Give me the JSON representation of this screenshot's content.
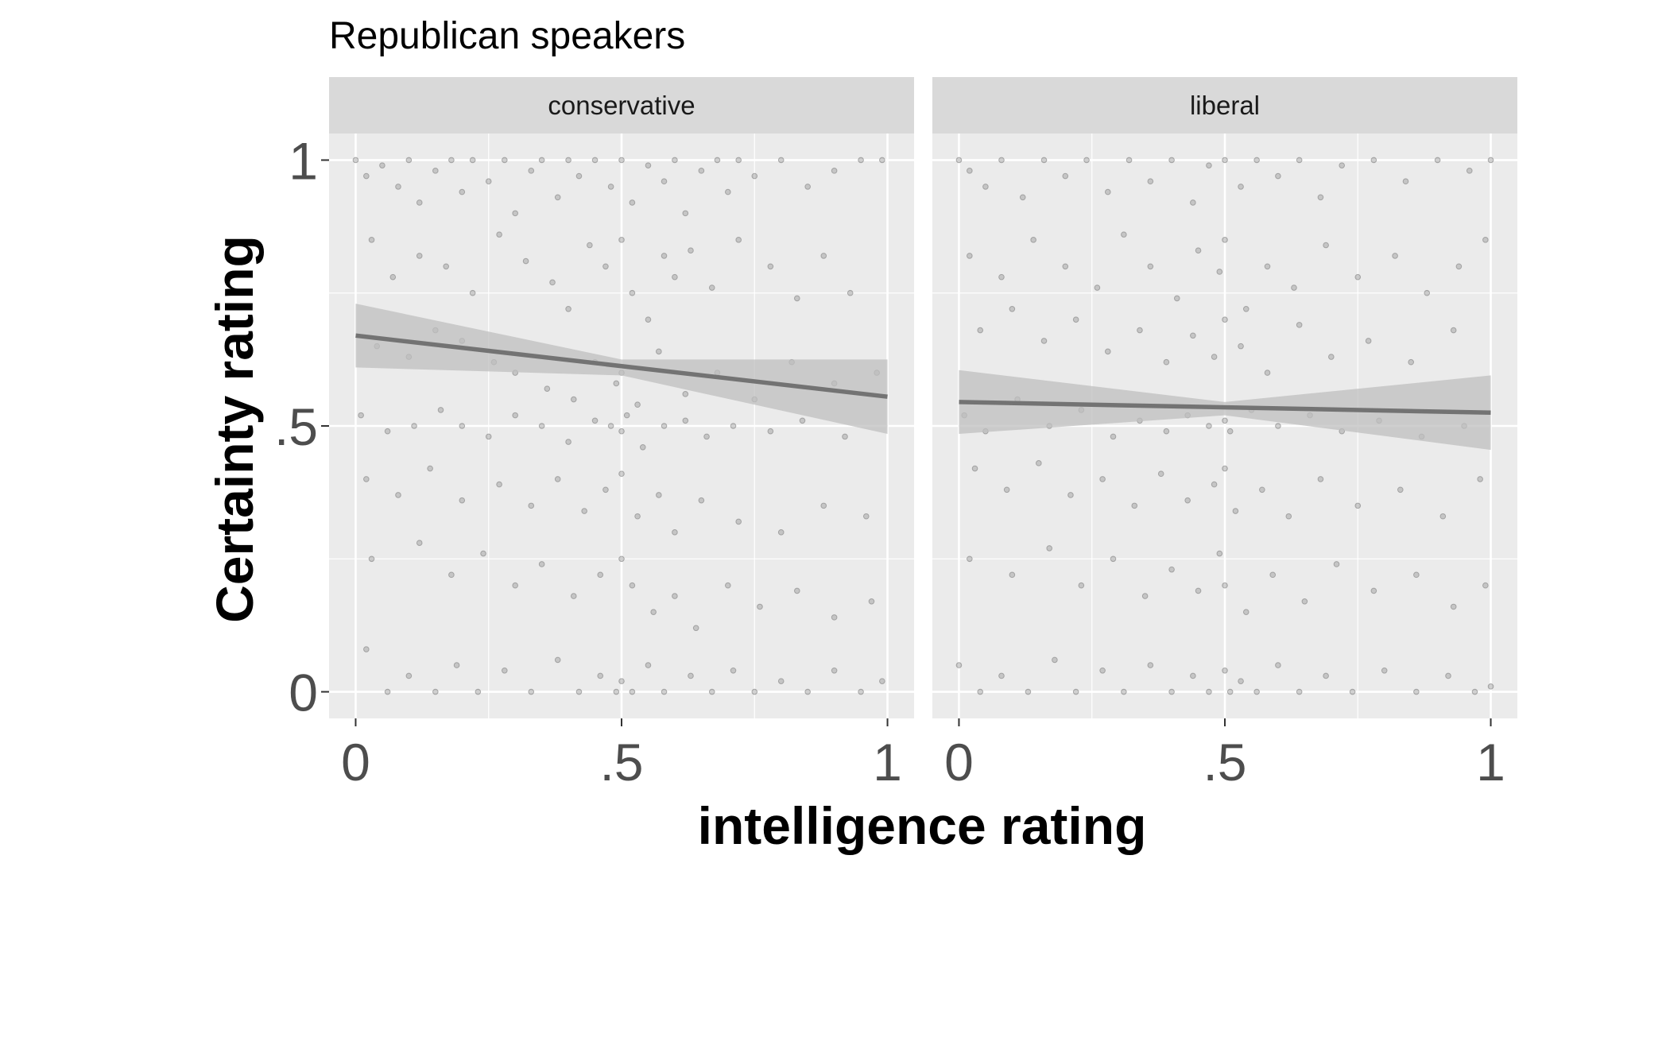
{
  "chart_data": {
    "type": "scatter",
    "title": "Republican speakers",
    "xlabel": "intelligence rating",
    "ylabel": "Certainty rating",
    "xlim": [
      -0.05,
      1.05
    ],
    "ylim": [
      -0.05,
      1.05
    ],
    "x_ticks": [
      0,
      0.5,
      1
    ],
    "x_tick_labels": [
      "0",
      ".5",
      "1"
    ],
    "y_ticks": [
      0,
      0.5,
      1
    ],
    "y_tick_labels": [
      "0",
      ".5",
      "1"
    ],
    "grid": true,
    "legend": "none",
    "colors": {
      "panel_background": "#ebebeb",
      "strip_background": "#d9d9d9",
      "grid": "#ffffff",
      "point": "#7f7f7f",
      "fit_line": "#737373",
      "ribbon": "#bfbfbf"
    },
    "panels": [
      {
        "facet": "conservative",
        "fit": {
          "x": [
            0,
            1
          ],
          "y": [
            0.67,
            0.555
          ]
        },
        "ribbon": {
          "x": [
            0,
            0.5,
            1
          ],
          "lower": [
            0.61,
            0.595,
            0.485
          ],
          "upper": [
            0.73,
            0.625,
            0.625
          ]
        },
        "points": [
          [
            0.0,
            1.0
          ],
          [
            0.02,
            0.97
          ],
          [
            0.05,
            0.99
          ],
          [
            0.08,
            0.95
          ],
          [
            0.1,
            1.0
          ],
          [
            0.12,
            0.92
          ],
          [
            0.15,
            0.98
          ],
          [
            0.18,
            1.0
          ],
          [
            0.2,
            0.94
          ],
          [
            0.22,
            1.0
          ],
          [
            0.25,
            0.96
          ],
          [
            0.28,
            1.0
          ],
          [
            0.3,
            0.9
          ],
          [
            0.33,
            0.98
          ],
          [
            0.35,
            1.0
          ],
          [
            0.38,
            0.93
          ],
          [
            0.4,
            1.0
          ],
          [
            0.42,
            0.97
          ],
          [
            0.45,
            1.0
          ],
          [
            0.48,
            0.95
          ],
          [
            0.5,
            1.0
          ],
          [
            0.52,
            0.92
          ],
          [
            0.55,
            0.99
          ],
          [
            0.58,
            0.96
          ],
          [
            0.6,
            1.0
          ],
          [
            0.62,
            0.9
          ],
          [
            0.65,
            0.98
          ],
          [
            0.68,
            1.0
          ],
          [
            0.7,
            0.94
          ],
          [
            0.72,
            1.0
          ],
          [
            0.75,
            0.97
          ],
          [
            0.8,
            1.0
          ],
          [
            0.85,
            0.95
          ],
          [
            0.9,
            0.98
          ],
          [
            0.95,
            1.0
          ],
          [
            0.99,
            1.0
          ],
          [
            0.03,
            0.85
          ],
          [
            0.07,
            0.78
          ],
          [
            0.12,
            0.82
          ],
          [
            0.17,
            0.8
          ],
          [
            0.22,
            0.75
          ],
          [
            0.27,
            0.86
          ],
          [
            0.32,
            0.81
          ],
          [
            0.37,
            0.77
          ],
          [
            0.4,
            0.72
          ],
          [
            0.44,
            0.84
          ],
          [
            0.47,
            0.8
          ],
          [
            0.5,
            0.85
          ],
          [
            0.52,
            0.75
          ],
          [
            0.55,
            0.7
          ],
          [
            0.58,
            0.82
          ],
          [
            0.6,
            0.78
          ],
          [
            0.63,
            0.83
          ],
          [
            0.67,
            0.76
          ],
          [
            0.72,
            0.85
          ],
          [
            0.78,
            0.8
          ],
          [
            0.83,
            0.74
          ],
          [
            0.88,
            0.82
          ],
          [
            0.93,
            0.75
          ],
          [
            0.04,
            0.65
          ],
          [
            0.1,
            0.63
          ],
          [
            0.15,
            0.68
          ],
          [
            0.2,
            0.66
          ],
          [
            0.26,
            0.62
          ],
          [
            0.3,
            0.6
          ],
          [
            0.36,
            0.57
          ],
          [
            0.41,
            0.55
          ],
          [
            0.45,
            0.62
          ],
          [
            0.49,
            0.58
          ],
          [
            0.5,
            0.6
          ],
          [
            0.53,
            0.54
          ],
          [
            0.57,
            0.64
          ],
          [
            0.62,
            0.56
          ],
          [
            0.68,
            0.6
          ],
          [
            0.75,
            0.55
          ],
          [
            0.82,
            0.62
          ],
          [
            0.9,
            0.58
          ],
          [
            0.98,
            0.6
          ],
          [
            0.01,
            0.52
          ],
          [
            0.06,
            0.49
          ],
          [
            0.11,
            0.5
          ],
          [
            0.16,
            0.53
          ],
          [
            0.2,
            0.5
          ],
          [
            0.25,
            0.48
          ],
          [
            0.3,
            0.52
          ],
          [
            0.35,
            0.5
          ],
          [
            0.4,
            0.47
          ],
          [
            0.45,
            0.51
          ],
          [
            0.48,
            0.5
          ],
          [
            0.5,
            0.49
          ],
          [
            0.51,
            0.52
          ],
          [
            0.54,
            0.46
          ],
          [
            0.58,
            0.5
          ],
          [
            0.62,
            0.51
          ],
          [
            0.66,
            0.48
          ],
          [
            0.71,
            0.5
          ],
          [
            0.78,
            0.49
          ],
          [
            0.84,
            0.51
          ],
          [
            0.92,
            0.48
          ],
          [
            0.02,
            0.4
          ],
          [
            0.08,
            0.37
          ],
          [
            0.14,
            0.42
          ],
          [
            0.2,
            0.36
          ],
          [
            0.27,
            0.39
          ],
          [
            0.33,
            0.35
          ],
          [
            0.38,
            0.4
          ],
          [
            0.43,
            0.34
          ],
          [
            0.47,
            0.38
          ],
          [
            0.5,
            0.41
          ],
          [
            0.53,
            0.33
          ],
          [
            0.57,
            0.37
          ],
          [
            0.6,
            0.3
          ],
          [
            0.65,
            0.36
          ],
          [
            0.72,
            0.32
          ],
          [
            0.8,
            0.3
          ],
          [
            0.88,
            0.35
          ],
          [
            0.96,
            0.33
          ],
          [
            0.03,
            0.25
          ],
          [
            0.12,
            0.28
          ],
          [
            0.18,
            0.22
          ],
          [
            0.24,
            0.26
          ],
          [
            0.3,
            0.2
          ],
          [
            0.35,
            0.24
          ],
          [
            0.41,
            0.18
          ],
          [
            0.46,
            0.22
          ],
          [
            0.5,
            0.25
          ],
          [
            0.52,
            0.2
          ],
          [
            0.56,
            0.15
          ],
          [
            0.6,
            0.18
          ],
          [
            0.64,
            0.12
          ],
          [
            0.7,
            0.2
          ],
          [
            0.76,
            0.16
          ],
          [
            0.83,
            0.19
          ],
          [
            0.9,
            0.14
          ],
          [
            0.97,
            0.17
          ],
          [
            0.02,
            0.08
          ],
          [
            0.06,
            0.0
          ],
          [
            0.1,
            0.03
          ],
          [
            0.15,
            0.0
          ],
          [
            0.19,
            0.05
          ],
          [
            0.23,
            0.0
          ],
          [
            0.28,
            0.04
          ],
          [
            0.33,
            0.0
          ],
          [
            0.38,
            0.06
          ],
          [
            0.42,
            0.0
          ],
          [
            0.46,
            0.03
          ],
          [
            0.49,
            0.0
          ],
          [
            0.5,
            0.02
          ],
          [
            0.52,
            0.0
          ],
          [
            0.55,
            0.05
          ],
          [
            0.58,
            0.0
          ],
          [
            0.63,
            0.03
          ],
          [
            0.67,
            0.0
          ],
          [
            0.71,
            0.04
          ],
          [
            0.75,
            0.0
          ],
          [
            0.8,
            0.02
          ],
          [
            0.85,
            0.0
          ],
          [
            0.9,
            0.04
          ],
          [
            0.95,
            0.0
          ],
          [
            0.99,
            0.02
          ]
        ]
      },
      {
        "facet": "liberal",
        "fit": {
          "x": [
            0,
            1
          ],
          "y": [
            0.545,
            0.525
          ]
        },
        "ribbon": {
          "x": [
            0,
            0.5,
            1
          ],
          "lower": [
            0.485,
            0.52,
            0.455
          ],
          "upper": [
            0.605,
            0.545,
            0.595
          ]
        },
        "points": [
          [
            0.0,
            1.0
          ],
          [
            0.02,
            0.98
          ],
          [
            0.05,
            0.95
          ],
          [
            0.08,
            1.0
          ],
          [
            0.12,
            0.93
          ],
          [
            0.16,
            1.0
          ],
          [
            0.2,
            0.97
          ],
          [
            0.24,
            1.0
          ],
          [
            0.28,
            0.94
          ],
          [
            0.32,
            1.0
          ],
          [
            0.36,
            0.96
          ],
          [
            0.4,
            1.0
          ],
          [
            0.44,
            0.92
          ],
          [
            0.47,
            0.99
          ],
          [
            0.5,
            1.0
          ],
          [
            0.53,
            0.95
          ],
          [
            0.56,
            1.0
          ],
          [
            0.6,
            0.97
          ],
          [
            0.64,
            1.0
          ],
          [
            0.68,
            0.93
          ],
          [
            0.72,
            0.99
          ],
          [
            0.78,
            1.0
          ],
          [
            0.84,
            0.96
          ],
          [
            0.9,
            1.0
          ],
          [
            0.96,
            0.98
          ],
          [
            1.0,
            1.0
          ],
          [
            0.02,
            0.82
          ],
          [
            0.08,
            0.78
          ],
          [
            0.14,
            0.85
          ],
          [
            0.2,
            0.8
          ],
          [
            0.26,
            0.76
          ],
          [
            0.31,
            0.86
          ],
          [
            0.36,
            0.8
          ],
          [
            0.41,
            0.74
          ],
          [
            0.45,
            0.83
          ],
          [
            0.49,
            0.79
          ],
          [
            0.5,
            0.85
          ],
          [
            0.54,
            0.72
          ],
          [
            0.58,
            0.8
          ],
          [
            0.63,
            0.76
          ],
          [
            0.69,
            0.84
          ],
          [
            0.75,
            0.78
          ],
          [
            0.82,
            0.82
          ],
          [
            0.88,
            0.75
          ],
          [
            0.94,
            0.8
          ],
          [
            0.99,
            0.85
          ],
          [
            0.04,
            0.68
          ],
          [
            0.1,
            0.72
          ],
          [
            0.16,
            0.66
          ],
          [
            0.22,
            0.7
          ],
          [
            0.28,
            0.64
          ],
          [
            0.34,
            0.68
          ],
          [
            0.39,
            0.62
          ],
          [
            0.44,
            0.67
          ],
          [
            0.48,
            0.63
          ],
          [
            0.5,
            0.7
          ],
          [
            0.53,
            0.65
          ],
          [
            0.58,
            0.6
          ],
          [
            0.64,
            0.69
          ],
          [
            0.7,
            0.63
          ],
          [
            0.77,
            0.66
          ],
          [
            0.85,
            0.62
          ],
          [
            0.93,
            0.68
          ],
          [
            0.01,
            0.52
          ],
          [
            0.05,
            0.49
          ],
          [
            0.11,
            0.55
          ],
          [
            0.17,
            0.5
          ],
          [
            0.23,
            0.53
          ],
          [
            0.29,
            0.48
          ],
          [
            0.34,
            0.51
          ],
          [
            0.39,
            0.49
          ],
          [
            0.43,
            0.52
          ],
          [
            0.47,
            0.5
          ],
          [
            0.5,
            0.51
          ],
          [
            0.51,
            0.49
          ],
          [
            0.55,
            0.53
          ],
          [
            0.6,
            0.5
          ],
          [
            0.66,
            0.52
          ],
          [
            0.72,
            0.49
          ],
          [
            0.79,
            0.51
          ],
          [
            0.87,
            0.48
          ],
          [
            0.95,
            0.5
          ],
          [
            0.03,
            0.42
          ],
          [
            0.09,
            0.38
          ],
          [
            0.15,
            0.43
          ],
          [
            0.21,
            0.37
          ],
          [
            0.27,
            0.4
          ],
          [
            0.33,
            0.35
          ],
          [
            0.38,
            0.41
          ],
          [
            0.43,
            0.36
          ],
          [
            0.48,
            0.39
          ],
          [
            0.5,
            0.42
          ],
          [
            0.52,
            0.34
          ],
          [
            0.57,
            0.38
          ],
          [
            0.62,
            0.33
          ],
          [
            0.68,
            0.4
          ],
          [
            0.75,
            0.35
          ],
          [
            0.83,
            0.38
          ],
          [
            0.91,
            0.33
          ],
          [
            0.98,
            0.4
          ],
          [
            0.02,
            0.25
          ],
          [
            0.1,
            0.22
          ],
          [
            0.17,
            0.27
          ],
          [
            0.23,
            0.2
          ],
          [
            0.29,
            0.25
          ],
          [
            0.35,
            0.18
          ],
          [
            0.4,
            0.23
          ],
          [
            0.45,
            0.19
          ],
          [
            0.49,
            0.26
          ],
          [
            0.5,
            0.2
          ],
          [
            0.54,
            0.15
          ],
          [
            0.59,
            0.22
          ],
          [
            0.65,
            0.17
          ],
          [
            0.71,
            0.24
          ],
          [
            0.78,
            0.19
          ],
          [
            0.86,
            0.22
          ],
          [
            0.93,
            0.16
          ],
          [
            0.99,
            0.2
          ],
          [
            0.0,
            0.05
          ],
          [
            0.04,
            0.0
          ],
          [
            0.08,
            0.03
          ],
          [
            0.13,
            0.0
          ],
          [
            0.18,
            0.06
          ],
          [
            0.22,
            0.0
          ],
          [
            0.27,
            0.04
          ],
          [
            0.31,
            0.0
          ],
          [
            0.36,
            0.05
          ],
          [
            0.4,
            0.0
          ],
          [
            0.44,
            0.03
          ],
          [
            0.47,
            0.0
          ],
          [
            0.5,
            0.04
          ],
          [
            0.51,
            0.0
          ],
          [
            0.53,
            0.02
          ],
          [
            0.56,
            0.0
          ],
          [
            0.6,
            0.05
          ],
          [
            0.64,
            0.0
          ],
          [
            0.69,
            0.03
          ],
          [
            0.74,
            0.0
          ],
          [
            0.8,
            0.04
          ],
          [
            0.86,
            0.0
          ],
          [
            0.92,
            0.03
          ],
          [
            0.97,
            0.0
          ],
          [
            1.0,
            0.01
          ]
        ]
      }
    ]
  }
}
